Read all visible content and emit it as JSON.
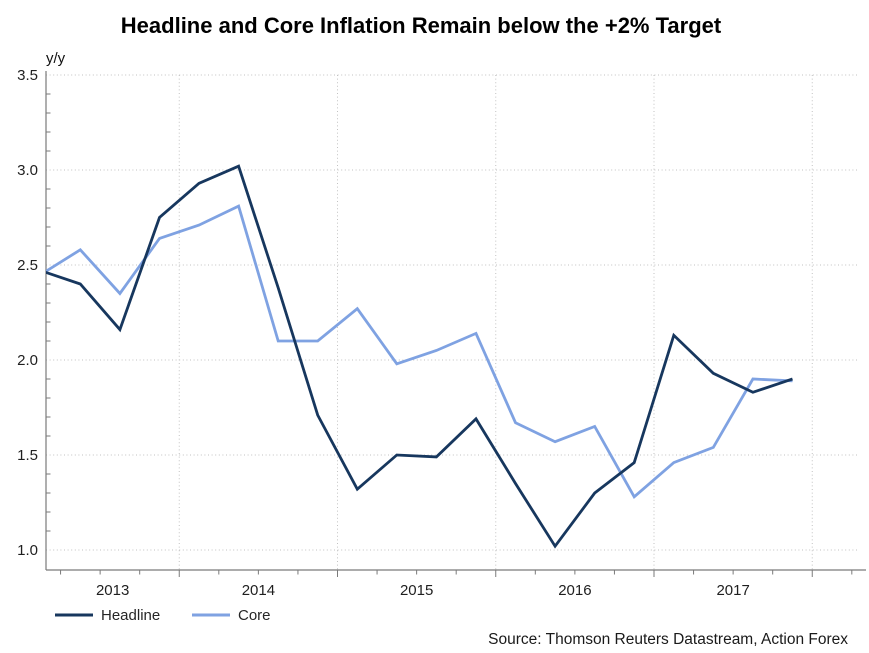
{
  "title": "Headline and Core Inflation Remain below the +2% Target",
  "y_axis_unit": "y/y",
  "source_note": "Source: Thomson Reuters Datastream, Action Forex",
  "colors": {
    "headline": "#17375e",
    "core": "#7fa2e2",
    "grid": "#c2c2c2",
    "axis": "#7a7a7a",
    "text": "#1a1a1a"
  },
  "legend": {
    "items": [
      {
        "label": "Headline",
        "color": "#17375e"
      },
      {
        "label": "Core",
        "color": "#7fa2e2"
      }
    ]
  },
  "chart_data": {
    "type": "line",
    "title": "Headline and Core Inflation Remain below the +2% Target",
    "ylabel": "y/y",
    "x_unit": "decimal_year (quarterly observations plotted at mid-quarter)",
    "x": [
      2013.125,
      2013.375,
      2013.625,
      2013.875,
      2014.125,
      2014.375,
      2014.625,
      2014.875,
      2015.125,
      2015.375,
      2015.625,
      2015.875,
      2016.125,
      2016.375,
      2016.625,
      2016.875,
      2017.125,
      2017.375,
      2017.625,
      2017.875
    ],
    "series": [
      {
        "name": "Headline",
        "color": "#17375e",
        "values": [
          2.47,
          2.4,
          2.16,
          2.75,
          2.93,
          3.02,
          2.38,
          1.71,
          1.32,
          1.5,
          1.49,
          1.69,
          1.35,
          1.02,
          1.3,
          1.46,
          2.13,
          1.93,
          1.83,
          1.9
        ]
      },
      {
        "name": "Core",
        "color": "#7fa2e2",
        "values": [
          2.45,
          2.58,
          2.35,
          2.64,
          2.71,
          2.81,
          2.1,
          2.1,
          2.27,
          1.98,
          2.05,
          2.14,
          1.67,
          1.57,
          1.65,
          1.28,
          1.46,
          1.54,
          1.9,
          1.89
        ]
      }
    ],
    "y_ticks": [
      1.0,
      1.5,
      2.0,
      2.5,
      3.0,
      3.5
    ],
    "y_tick_labels": [
      "1.0",
      "1.5",
      "2.0",
      "2.5",
      "3.0",
      "3.5"
    ],
    "x_year_labels": [
      "2013",
      "2014",
      "2015",
      "2016",
      "2017"
    ],
    "x_grid_years": [
      2014,
      2015,
      2016,
      2017,
      2018
    ],
    "ylim": [
      1.0,
      3.5
    ],
    "xlim_years": [
      2013.16,
      2018.29
    ],
    "grid": "dotted",
    "legend_position": "bottom-left"
  }
}
